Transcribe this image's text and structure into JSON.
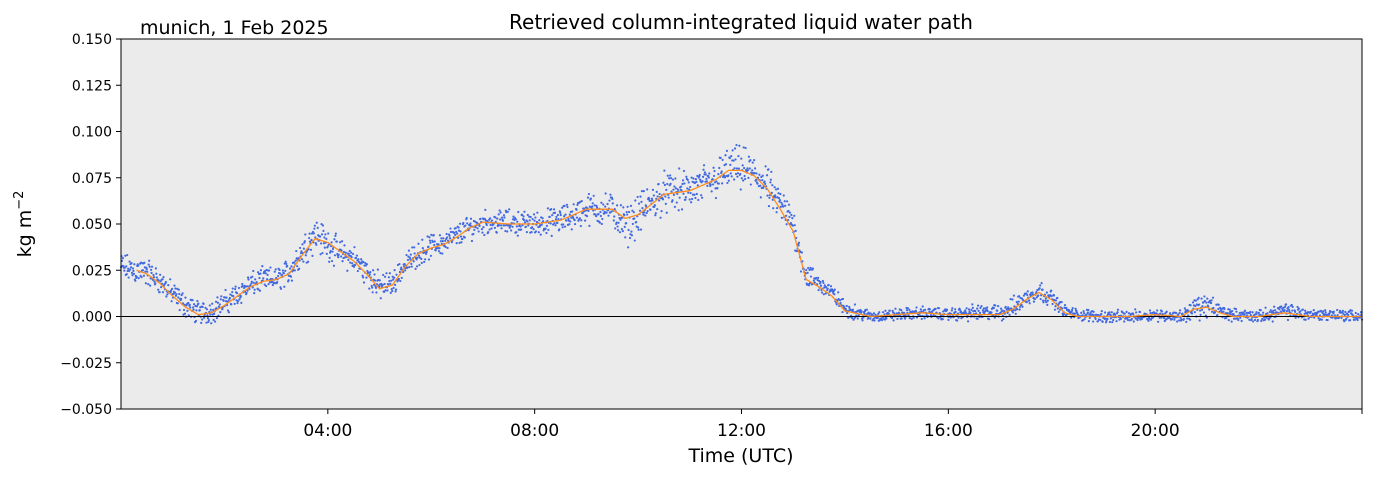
{
  "figure": {
    "location_label": "munich, 1 Feb 2025"
  },
  "chart_data": {
    "type": "scatter",
    "title": "Retrieved column-integrated liquid water path",
    "xlabel": "Time (UTC)",
    "ylabel": "kg m",
    "ylabel_superscript": "−2",
    "xlim": [
      0,
      24
    ],
    "ylim": [
      -0.05,
      0.15
    ],
    "x_ticks": [
      {
        "value": 4,
        "label": "04:00"
      },
      {
        "value": 8,
        "label": "08:00"
      },
      {
        "value": 12,
        "label": "12:00"
      },
      {
        "value": 16,
        "label": "16:00"
      },
      {
        "value": 20,
        "label": "20:00"
      }
    ],
    "y_ticks": [
      {
        "value": 0.15,
        "label": "0.150"
      },
      {
        "value": 0.125,
        "label": "0.125"
      },
      {
        "value": 0.1,
        "label": "0.100"
      },
      {
        "value": 0.075,
        "label": "0.075"
      },
      {
        "value": 0.05,
        "label": "0.050"
      },
      {
        "value": 0.025,
        "label": "0.025"
      },
      {
        "value": 0.0,
        "label": "0.000"
      },
      {
        "value": -0.025,
        "label": "−0.025"
      },
      {
        "value": -0.05,
        "label": "−0.050"
      }
    ],
    "zero_line": true,
    "grid": false,
    "colors": {
      "background": "#ebebeb",
      "points": "#4169e1",
      "smoothed": "#ff8c1a",
      "zero_line": "#000000"
    },
    "series": [
      {
        "kind": "points",
        "x": [
          0.0,
          0.25,
          0.5,
          0.75,
          1.0,
          1.25,
          1.5,
          1.75,
          2.0,
          2.25,
          2.5,
          2.75,
          3.0,
          3.25,
          3.5,
          3.75,
          4.0,
          4.25,
          4.5,
          4.75,
          5.0,
          5.25,
          5.5,
          5.75,
          6.0,
          6.25,
          6.5,
          6.75,
          7.0,
          7.5,
          8.0,
          8.5,
          9.0,
          9.5,
          9.75,
          10.0,
          10.5,
          11.0,
          11.5,
          11.75,
          12.0,
          12.25,
          12.5,
          12.75,
          13.0,
          13.25,
          13.5,
          13.75,
          14.0,
          14.5,
          15.0,
          15.5,
          16.0,
          16.5,
          17.0,
          17.25,
          17.5,
          17.75,
          18.0,
          18.25,
          18.5,
          19.0,
          19.5,
          20.0,
          20.5,
          20.75,
          21.0,
          21.25,
          21.5,
          22.0,
          22.5,
          23.0,
          23.5,
          24.0
        ],
        "y": [
          0.027,
          0.025,
          0.024,
          0.019,
          0.012,
          0.006,
          0.002,
          0.003,
          0.007,
          0.012,
          0.017,
          0.02,
          0.02,
          0.024,
          0.035,
          0.045,
          0.039,
          0.034,
          0.031,
          0.024,
          0.016,
          0.018,
          0.028,
          0.034,
          0.038,
          0.04,
          0.044,
          0.048,
          0.051,
          0.051,
          0.05,
          0.052,
          0.058,
          0.058,
          0.048,
          0.055,
          0.067,
          0.068,
          0.074,
          0.08,
          0.08,
          0.077,
          0.07,
          0.06,
          0.05,
          0.022,
          0.018,
          0.013,
          0.004,
          0.0,
          0.001,
          0.002,
          0.001,
          0.002,
          0.002,
          0.005,
          0.01,
          0.014,
          0.01,
          0.003,
          0.001,
          0.0,
          0.0,
          0.001,
          0.0,
          0.004,
          0.006,
          0.003,
          0.001,
          0.0,
          0.003,
          0.001,
          0.001,
          0.0
        ],
        "spread": [
          0.007,
          0.007,
          0.007,
          0.006,
          0.006,
          0.006,
          0.006,
          0.006,
          0.006,
          0.006,
          0.006,
          0.006,
          0.006,
          0.007,
          0.008,
          0.009,
          0.008,
          0.007,
          0.007,
          0.007,
          0.007,
          0.006,
          0.006,
          0.006,
          0.006,
          0.006,
          0.006,
          0.006,
          0.006,
          0.006,
          0.006,
          0.007,
          0.008,
          0.008,
          0.01,
          0.01,
          0.01,
          0.01,
          0.01,
          0.01,
          0.011,
          0.01,
          0.01,
          0.009,
          0.009,
          0.007,
          0.005,
          0.004,
          0.004,
          0.003,
          0.003,
          0.003,
          0.003,
          0.004,
          0.004,
          0.005,
          0.005,
          0.005,
          0.004,
          0.003,
          0.003,
          0.003,
          0.003,
          0.003,
          0.003,
          0.006,
          0.006,
          0.004,
          0.003,
          0.003,
          0.004,
          0.003,
          0.003,
          0.003
        ]
      },
      {
        "kind": "line",
        "x": [
          0.3,
          0.5,
          0.75,
          1.0,
          1.25,
          1.5,
          1.75,
          2.0,
          2.25,
          2.5,
          2.75,
          3.0,
          3.25,
          3.5,
          3.75,
          4.0,
          4.25,
          4.5,
          4.75,
          5.0,
          5.25,
          5.5,
          5.75,
          6.0,
          6.25,
          6.5,
          6.75,
          7.0,
          7.5,
          8.0,
          8.5,
          9.0,
          9.5,
          9.75,
          10.0,
          10.5,
          11.0,
          11.5,
          11.75,
          12.0,
          12.25,
          12.5,
          12.75,
          13.0,
          13.25,
          13.5,
          13.75,
          14.0,
          14.5,
          15.0,
          15.5,
          16.0,
          16.5,
          17.0,
          17.25,
          17.5,
          17.75,
          18.0,
          18.25,
          18.5,
          19.0,
          19.5,
          20.0,
          20.5,
          20.75,
          21.0,
          21.25,
          21.5,
          22.0,
          22.5,
          23.0,
          23.5,
          24.0
        ],
        "y": [
          0.025,
          0.023,
          0.018,
          0.011,
          0.005,
          0.001,
          0.002,
          0.006,
          0.011,
          0.016,
          0.019,
          0.02,
          0.023,
          0.033,
          0.042,
          0.04,
          0.035,
          0.03,
          0.023,
          0.015,
          0.017,
          0.027,
          0.034,
          0.037,
          0.039,
          0.043,
          0.048,
          0.051,
          0.05,
          0.05,
          0.052,
          0.058,
          0.058,
          0.053,
          0.055,
          0.066,
          0.068,
          0.074,
          0.079,
          0.079,
          0.076,
          0.069,
          0.058,
          0.046,
          0.02,
          0.016,
          0.011,
          0.003,
          0.0,
          0.001,
          0.002,
          0.001,
          0.001,
          0.001,
          0.004,
          0.009,
          0.013,
          0.009,
          0.002,
          0.0,
          0.0,
          0.0,
          0.001,
          0.0,
          0.004,
          0.005,
          0.002,
          0.0,
          0.0,
          0.002,
          0.0,
          0.0,
          0.0
        ]
      }
    ]
  }
}
